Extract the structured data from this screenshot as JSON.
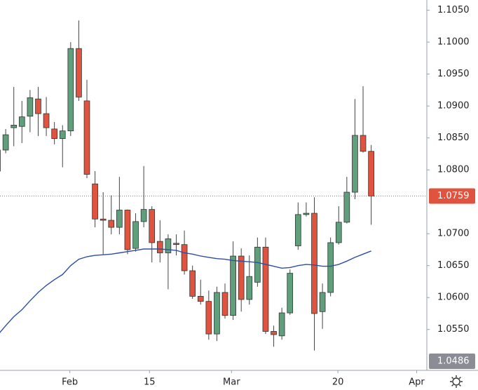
{
  "chart_data": {
    "type": "candlestick",
    "open": [
      1.0798,
      1.0831,
      1.0866,
      1.0868,
      1.0884,
      1.0911,
      1.0888,
      1.0864,
      1.0849,
      1.0861,
      1.099,
      1.0908,
      1.0778,
      1.0723,
      1.0721,
      1.071,
      1.0737,
      1.0677,
      1.0719,
      1.0738,
      1.0688,
      1.067,
      1.0685,
      1.0683,
      1.0642,
      1.0602,
      1.0594,
      1.0543,
      1.0608,
      1.0572,
      1.0665,
      1.0597,
      1.0624,
      1.0679,
      1.0547,
      1.054,
      1.0576,
      1.0681,
      1.073,
      1.0732,
      1.0578,
      1.0608,
      1.0686,
      1.0718,
      1.0765,
      1.0854,
      1.0829
    ],
    "high": [
      1.0831,
      1.0864,
      1.093,
      1.0908,
      1.0925,
      1.093,
      1.0914,
      1.0875,
      1.087,
      1.1,
      1.1034,
      1.0941,
      1.0798,
      1.0765,
      1.076,
      1.0789,
      1.0738,
      1.0732,
      1.0806,
      1.0743,
      1.0721,
      1.0699,
      1.0699,
      1.0705,
      1.065,
      1.0628,
      1.0611,
      1.0617,
      1.0622,
      1.0688,
      1.0677,
      1.0666,
      1.0694,
      1.0694,
      1.0556,
      1.0584,
      1.0644,
      1.0749,
      1.0749,
      1.0757,
      1.0622,
      1.0694,
      1.0743,
      1.0789,
      1.0911,
      1.0931,
      1.0839
    ],
    "low": [
      1.0793,
      1.0826,
      1.0837,
      1.0842,
      1.0859,
      1.0853,
      1.0853,
      1.084,
      1.0804,
      1.0853,
      1.0908,
      1.0787,
      1.071,
      1.0668,
      1.0699,
      1.0699,
      1.0668,
      1.0672,
      1.071,
      1.0655,
      1.0655,
      1.0613,
      1.0666,
      1.0636,
      1.0598,
      1.0589,
      1.0534,
      1.0532,
      1.0567,
      1.0565,
      1.0578,
      1.0589,
      1.0617,
      1.0543,
      1.0523,
      1.0534,
      1.0573,
      1.0675,
      1.0727,
      1.0517,
      1.0551,
      1.0602,
      1.0683,
      1.0716,
      1.0754,
      1.0827,
      1.0714
    ],
    "close": [
      1.0831,
      1.0855,
      1.087,
      1.0883,
      1.0913,
      1.0888,
      1.0866,
      1.0849,
      1.0861,
      1.099,
      1.0914,
      1.0793,
      1.0723,
      1.0721,
      1.071,
      1.0737,
      1.0675,
      1.0719,
      1.0738,
      1.0686,
      1.067,
      1.0692,
      1.0683,
      1.0642,
      1.0602,
      1.0594,
      1.0543,
      1.0608,
      1.0572,
      1.0665,
      1.0597,
      1.0633,
      1.0679,
      1.0547,
      1.0542,
      1.0576,
      1.0638,
      1.073,
      1.0732,
      1.0575,
      1.0608,
      1.0686,
      1.0718,
      1.0765,
      1.0854,
      1.0829,
      1.0759
    ],
    "up_color": "#5f9f7c",
    "down_color": "#e0533f",
    "moving_average": {
      "color": "#2e4ea6",
      "values": [
        1.0541,
        1.0556,
        1.057,
        1.0581,
        1.0595,
        1.0608,
        1.0619,
        1.0628,
        1.0636,
        1.065,
        1.066,
        1.0664,
        1.0666,
        1.0667,
        1.0668,
        1.067,
        1.0672,
        1.0674,
        1.0676,
        1.0676,
        1.0676,
        1.0675,
        1.0674,
        1.067,
        1.0668,
        1.0665,
        1.0663,
        1.0661,
        1.066,
        1.0658,
        1.0657,
        1.0656,
        1.0655,
        1.0652,
        1.0649,
        1.0646,
        1.0647,
        1.065,
        1.0652,
        1.0651,
        1.0649,
        1.0649,
        1.0652,
        1.0657,
        1.0663,
        1.0668,
        1.0673
      ]
    },
    "xlim": [
      0.3,
      52.85
    ],
    "xticks": [
      {
        "value": 8.9,
        "label": "Feb"
      },
      {
        "value": 18.7,
        "label": "15"
      },
      {
        "value": 28.8,
        "label": "Mar"
      },
      {
        "value": 41.9,
        "label": "20"
      },
      {
        "value": 51.6,
        "label": "Apr"
      }
    ],
    "ylim": [
      1.0486,
      1.1066
    ],
    "yticks": [
      {
        "value": 1.055,
        "label": "1.0550"
      },
      {
        "value": 1.06,
        "label": "1.0600"
      },
      {
        "value": 1.065,
        "label": "1.0650"
      },
      {
        "value": 1.07,
        "label": "1.0700"
      },
      {
        "value": 1.08,
        "label": "1.0800"
      },
      {
        "value": 1.085,
        "label": "1.0850"
      },
      {
        "value": 1.09,
        "label": "1.0900"
      },
      {
        "value": 1.095,
        "label": "1.0950"
      },
      {
        "value": 1.1,
        "label": "1.1000"
      },
      {
        "value": 1.105,
        "label": "1.1050"
      }
    ]
  }
}
